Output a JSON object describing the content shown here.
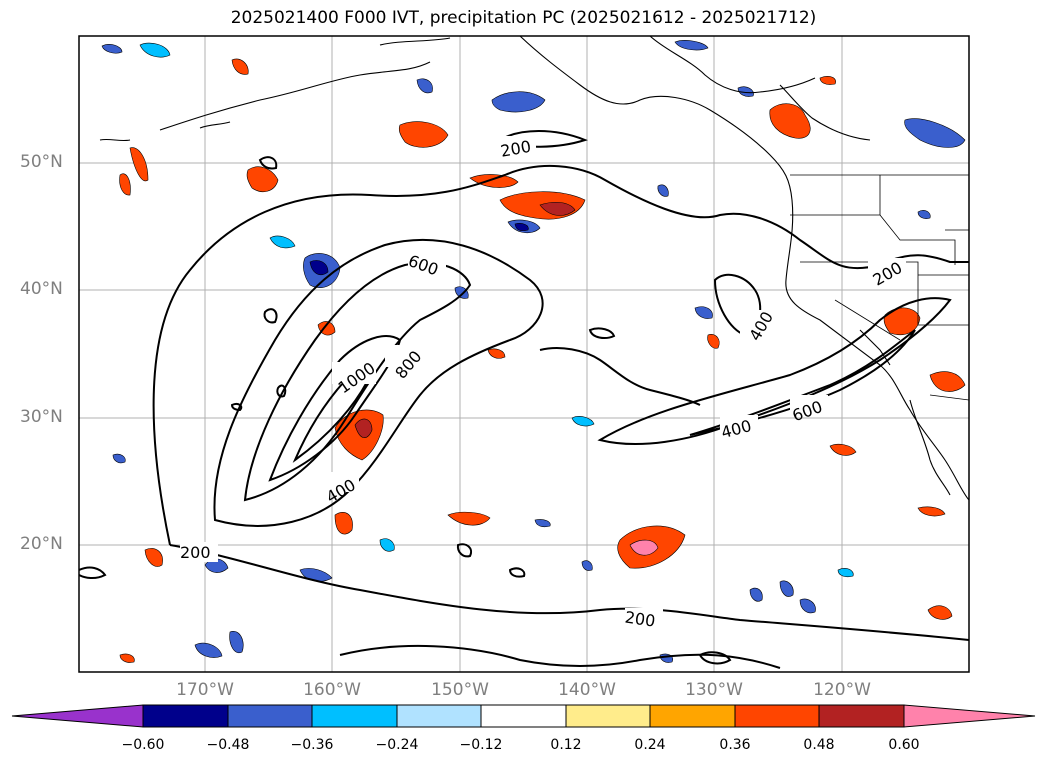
{
  "title": "2025021400 F000 IVT, precipitation PC (2025021612 - 2025021712)",
  "lat_labels": [
    "50°N",
    "40°N",
    "30°N",
    "20°N"
  ],
  "lon_labels": [
    "170°W",
    "160°W",
    "150°W",
    "140°W",
    "130°W",
    "120°W"
  ],
  "contour_labels": [
    "200",
    "200",
    "200",
    "200",
    "400",
    "400",
    "400",
    "600",
    "600",
    "800",
    "1000"
  ],
  "colorbar": {
    "ticks": [
      "−0.60",
      "−0.48",
      "−0.36",
      "−0.24",
      "−0.12",
      "0.12",
      "0.24",
      "0.36",
      "0.48",
      "0.60"
    ],
    "colors": [
      "#9932cc",
      "#00008b",
      "#3a5fcd",
      "#00bfff",
      "#b0e2ff",
      "#ffffff",
      "#ffec8b",
      "#ffa500",
      "#ff4500",
      "#b22222",
      "#ff82ab"
    ]
  }
}
